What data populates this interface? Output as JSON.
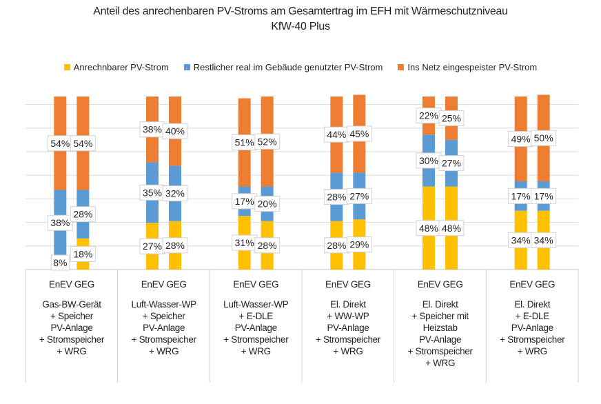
{
  "chart_data": {
    "type": "bar",
    "stacked": true,
    "title": "Anteil des anrechenbaren PV-Stroms am Gesamtertrag im EFH mit Wärmeschutzniveau",
    "subtitle": "KfW-40 Plus",
    "legend_position": "top",
    "ylim": [
      0,
      100
    ],
    "grid": true,
    "series": [
      {
        "name": "Anrechnbarer PV-Strom",
        "color": "#FFC000",
        "values": [
          8,
          18,
          27,
          28,
          31,
          28,
          28,
          29,
          48,
          48,
          34,
          34
        ]
      },
      {
        "name": "Restlicher real im Gebäude genutzter PV-Strom",
        "color": "#5B9BD5",
        "values": [
          38,
          28,
          35,
          32,
          17,
          20,
          28,
          27,
          30,
          27,
          17,
          17
        ]
      },
      {
        "name": "Ins Netz eingespeister PV-Strom",
        "color": "#ED7D31",
        "values": [
          54,
          54,
          38,
          40,
          51,
          52,
          44,
          45,
          22,
          25,
          49,
          50
        ]
      }
    ],
    "bar_labels": [
      "EnEV",
      "GEG"
    ],
    "groups": [
      {
        "head": "EnEV GEG",
        "lines": [
          "Gas-BW-Gerät",
          "+ Speicher",
          "PV-Anlage",
          "+ Stromspeicher",
          "+ WRG"
        ]
      },
      {
        "head": "EnEV GEG",
        "lines": [
          "Luft-Wasser-WP",
          "+ Speicher",
          "PV-Anlage",
          "+ Stromspeicher",
          "+ WRG"
        ]
      },
      {
        "head": "EnEV GEG",
        "lines": [
          "Luft-Wasser-WP",
          "+ E-DLE",
          "PV-Anlage",
          "+ Stromspeicher",
          "+ WRG"
        ]
      },
      {
        "head": "EnEV GEG",
        "lines": [
          "El. Direkt",
          "+ WW-WP",
          "PV-Anlage",
          "+ Stromspeicher",
          "+ WRG"
        ]
      },
      {
        "head": "EnEV GEG",
        "lines": [
          "El. Direkt",
          "+ Speicher mit",
          "Heizstab",
          "PV-Anlage",
          "+ Stromspeicher",
          "+ WRG"
        ]
      },
      {
        "head": "EnEV GEG",
        "lines": [
          "El. Direkt",
          "+ E-DLE",
          "PV-Anlage",
          "+ Stromspeicher",
          "+ WRG"
        ]
      }
    ]
  }
}
